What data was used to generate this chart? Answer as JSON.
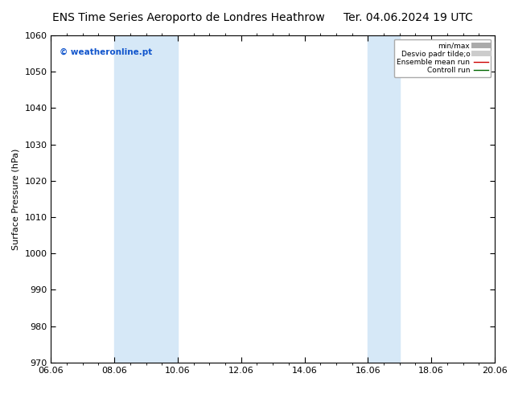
{
  "title_left": "ENS Time Series Aeroporto de Londres Heathrow",
  "title_right": "Ter. 04.06.2024 19 UTC",
  "ylabel": "Surface Pressure (hPa)",
  "ylim": [
    970,
    1060
  ],
  "yticks": [
    970,
    980,
    990,
    1000,
    1010,
    1020,
    1030,
    1040,
    1050,
    1060
  ],
  "xlim_start": 0.0,
  "xlim_end": 14.0,
  "xtick_labels": [
    "06.06",
    "08.06",
    "10.06",
    "12.06",
    "14.06",
    "16.06",
    "18.06",
    "20.06"
  ],
  "xtick_positions": [
    0,
    2,
    4,
    6,
    8,
    10,
    12,
    14
  ],
  "shade_bands": [
    {
      "xmin": 2.0,
      "xmax": 4.0
    },
    {
      "xmin": 10.0,
      "xmax": 11.0
    }
  ],
  "shade_color": "#d6e8f7",
  "watermark_text": "© weatheronline.pt",
  "watermark_color": "#1155cc",
  "legend_items": [
    {
      "label": "min/max",
      "color": "#aaaaaa",
      "lw": 5,
      "style": "solid"
    },
    {
      "label": "Desvio padr tilde;o",
      "color": "#cccccc",
      "lw": 5,
      "style": "solid"
    },
    {
      "label": "Ensemble mean run",
      "color": "#cc0000",
      "lw": 1.0,
      "style": "solid"
    },
    {
      "label": "Controll run",
      "color": "#006600",
      "lw": 1.0,
      "style": "solid"
    }
  ],
  "bg_color": "#ffffff",
  "plot_bg_color": "#ffffff",
  "title_fontsize": 10,
  "tick_fontsize": 8,
  "ylabel_fontsize": 8
}
